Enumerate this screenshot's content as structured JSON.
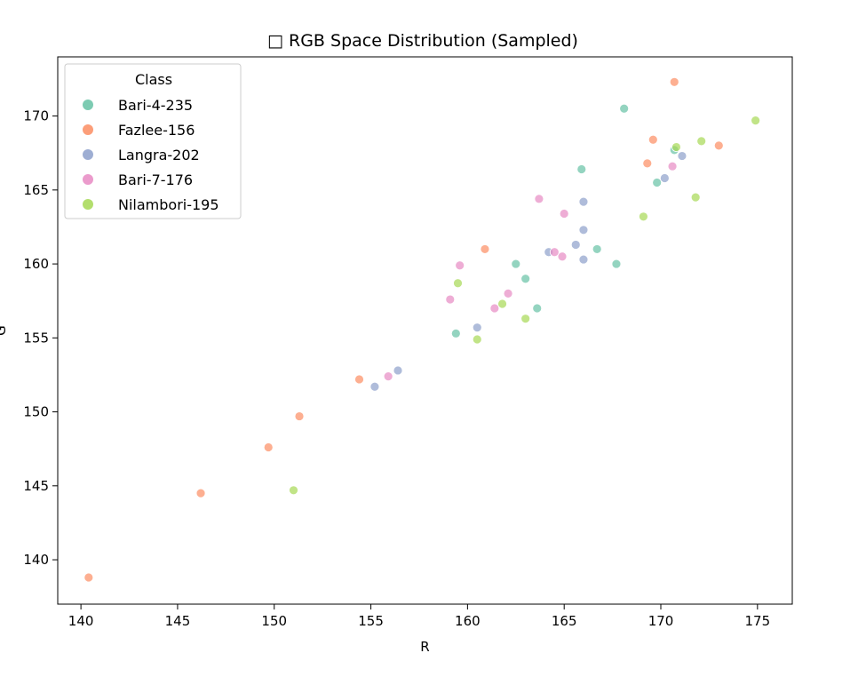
{
  "chart_data": {
    "type": "scatter",
    "title": "□ RGB Space Distribution (Sampled)",
    "xlabel": "R",
    "ylabel": "G",
    "xlim": [
      138.8,
      176.8
    ],
    "ylim": [
      137,
      174
    ],
    "x_ticks": [
      140,
      145,
      150,
      155,
      160,
      165,
      170,
      175
    ],
    "y_ticks": [
      140,
      145,
      150,
      155,
      160,
      165,
      170
    ],
    "grid": false,
    "legend": {
      "title": "Class",
      "placement": "top-left"
    },
    "series": [
      {
        "name": "Bari-4-235",
        "color": "#66c2a5",
        "points": [
          [
            168.1,
            170.5
          ],
          [
            165.9,
            166.4
          ],
          [
            169.8,
            165.5
          ],
          [
            170.7,
            167.7
          ],
          [
            162.5,
            160.0
          ],
          [
            163.0,
            159.0
          ],
          [
            166.7,
            161.0
          ],
          [
            167.7,
            160.0
          ],
          [
            163.6,
            157.0
          ],
          [
            159.4,
            155.3
          ]
        ]
      },
      {
        "name": "Fazlee-156",
        "color": "#fc8d62",
        "points": [
          [
            170.7,
            172.3
          ],
          [
            169.6,
            168.4
          ],
          [
            173.0,
            168.0
          ],
          [
            169.3,
            166.8
          ],
          [
            160.9,
            161.0
          ],
          [
            154.4,
            152.2
          ],
          [
            151.3,
            149.7
          ],
          [
            149.7,
            147.6
          ],
          [
            146.2,
            144.5
          ],
          [
            140.4,
            138.8
          ]
        ]
      },
      {
        "name": "Langra-202",
        "color": "#8da0cb",
        "points": [
          [
            171.1,
            167.3
          ],
          [
            170.2,
            165.8
          ],
          [
            166.0,
            164.2
          ],
          [
            166.0,
            162.3
          ],
          [
            165.6,
            161.3
          ],
          [
            164.2,
            160.8
          ],
          [
            166.0,
            160.3
          ],
          [
            160.5,
            155.7
          ],
          [
            156.4,
            152.8
          ],
          [
            155.2,
            151.7
          ]
        ]
      },
      {
        "name": "Bari-7-176",
        "color": "#e78ac3",
        "points": [
          [
            170.6,
            166.6
          ],
          [
            163.7,
            164.4
          ],
          [
            165.0,
            163.4
          ],
          [
            164.5,
            160.8
          ],
          [
            164.9,
            160.5
          ],
          [
            159.6,
            159.9
          ],
          [
            162.1,
            158.0
          ],
          [
            159.1,
            157.6
          ],
          [
            161.4,
            157.0
          ],
          [
            155.9,
            152.4
          ]
        ]
      },
      {
        "name": "Nilambori-195",
        "color": "#a6d854",
        "points": [
          [
            174.9,
            169.7
          ],
          [
            172.1,
            168.3
          ],
          [
            170.8,
            167.9
          ],
          [
            171.8,
            164.5
          ],
          [
            169.1,
            163.2
          ],
          [
            159.5,
            158.7
          ],
          [
            161.8,
            157.3
          ],
          [
            163.0,
            156.3
          ],
          [
            160.5,
            154.9
          ],
          [
            151.0,
            144.7
          ]
        ]
      }
    ]
  }
}
